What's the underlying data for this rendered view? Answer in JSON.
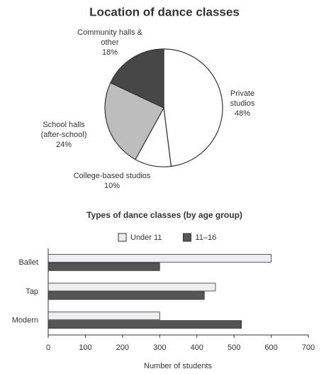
{
  "chart_data": [
    {
      "type": "pie",
      "title": "Location of dance classes",
      "categories": [
        "Private studios",
        "College-based studios",
        "School halls (after-school)",
        "Community halls & other"
      ],
      "values": [
        48,
        10,
        24,
        18
      ],
      "value_labels": [
        "48%",
        "10%",
        "24%",
        "18%"
      ],
      "colors": [
        "#ffffff",
        "#ffffff",
        "#bdbdbd",
        "#474747"
      ]
    },
    {
      "type": "hbar",
      "title": "Types of dance classes (by age group)",
      "categories": [
        "Ballet",
        "Tap",
        "Modern"
      ],
      "series": [
        {
          "name": "Under 11",
          "color": "#eceff1",
          "values": [
            600,
            450,
            300
          ]
        },
        {
          "name": "11–16",
          "color": "#555555",
          "values": [
            300,
            420,
            520
          ]
        }
      ],
      "xlim": [
        0,
        700
      ],
      "xticks": [
        0,
        100,
        200,
        300,
        400,
        500,
        600,
        700
      ],
      "xlabel": "Number of students"
    }
  ]
}
